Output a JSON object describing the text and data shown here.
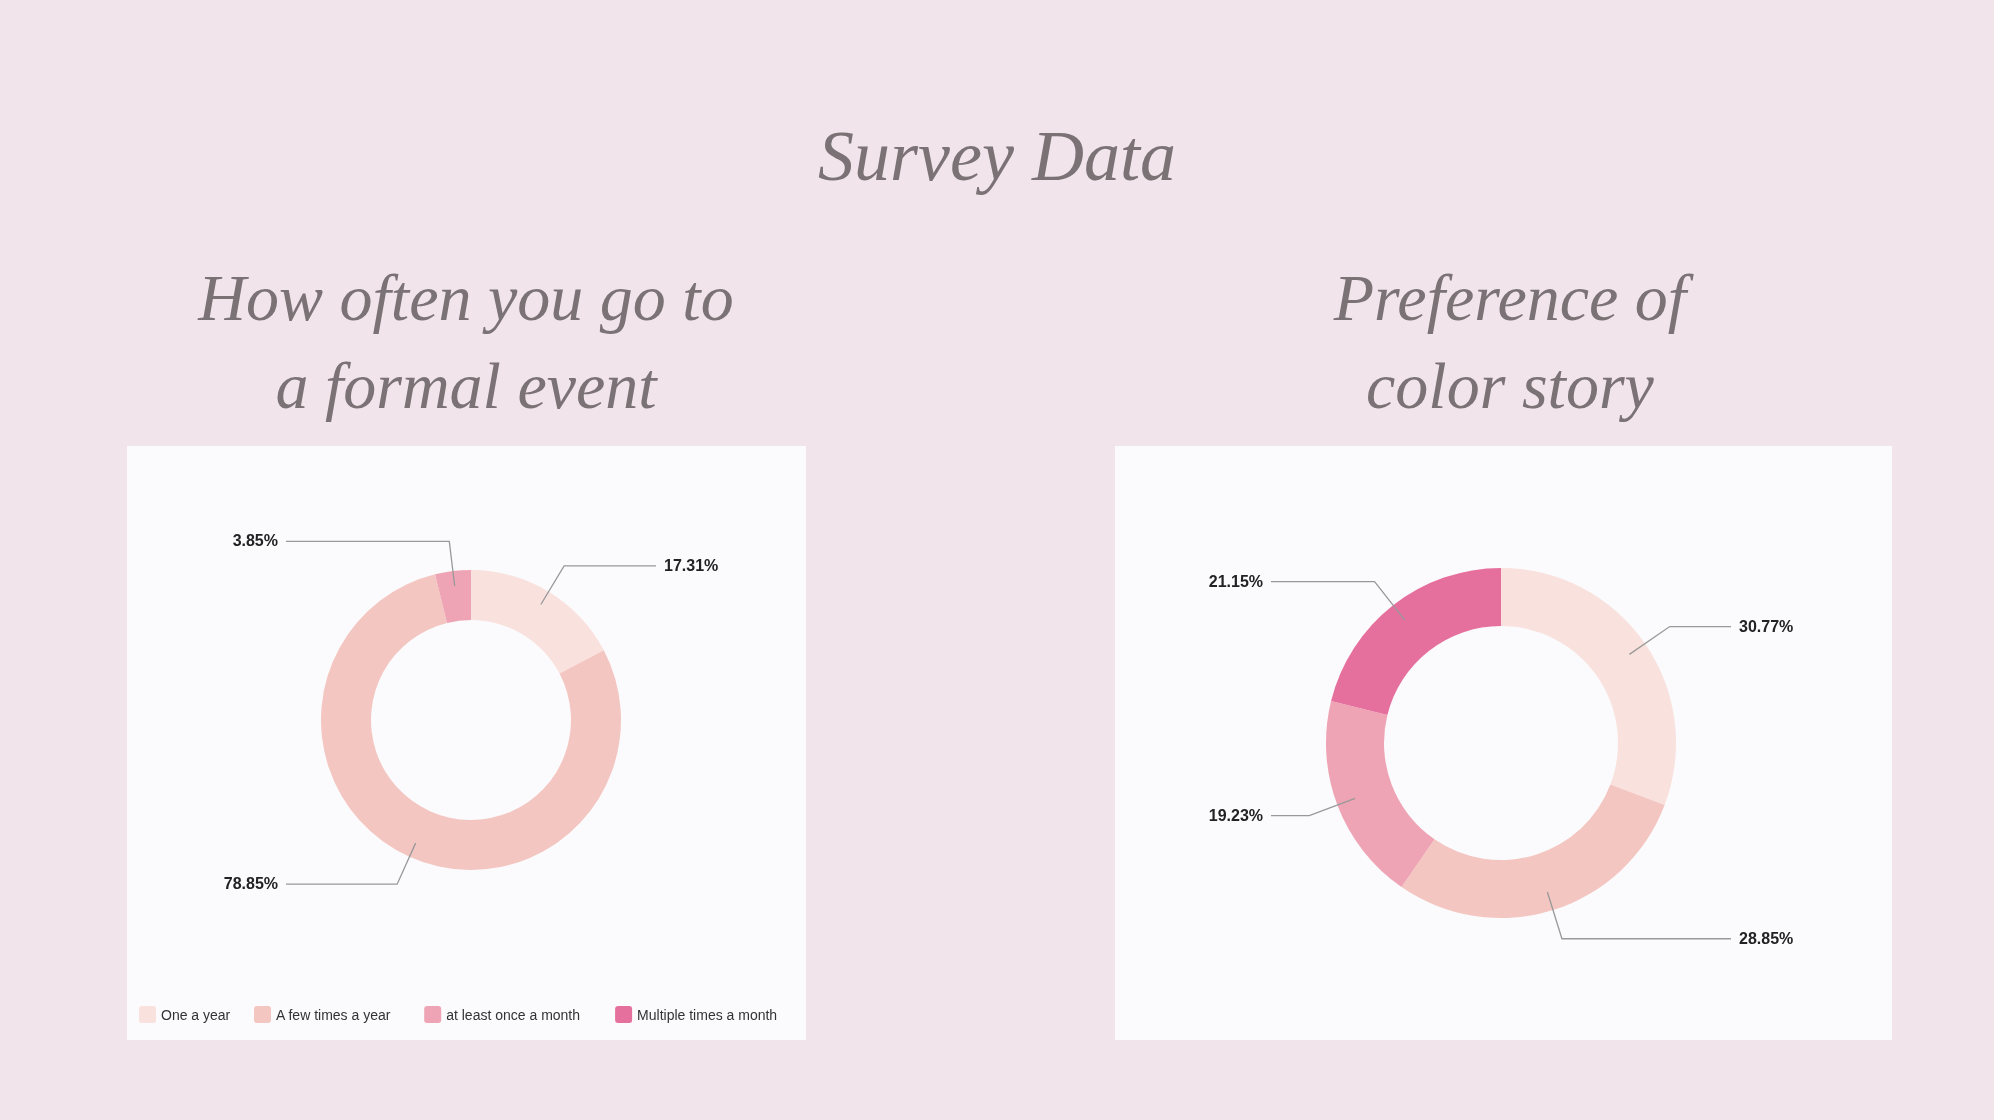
{
  "chart_data": [
    {
      "type": "donut",
      "title": "How often you go to a formal event",
      "annotations": [
        "Survey Data"
      ],
      "categories": [
        "One a year",
        "A few times a year",
        "at least once a month",
        "Multiple times a month"
      ],
      "values": [
        17.31,
        78.85,
        3.85,
        0
      ],
      "value_labels": [
        "17.31%",
        "78.85%",
        "3.85%",
        null
      ],
      "colors": [
        "#f9e1de",
        "#f4c6c1",
        "#eea4b4",
        "#e6709d"
      ],
      "legend": "bottom"
    },
    {
      "type": "donut",
      "title": "Preference of color story",
      "categories": [
        null,
        null,
        null,
        null
      ],
      "values": [
        30.77,
        28.85,
        19.23,
        21.15
      ],
      "value_labels": [
        "30.77%",
        "28.85%",
        "19.23%",
        "21.15%"
      ],
      "colors": [
        "#f9e1de",
        "#f4c6c1",
        "#eea4b4",
        "#e6709d"
      ]
    }
  ]
}
